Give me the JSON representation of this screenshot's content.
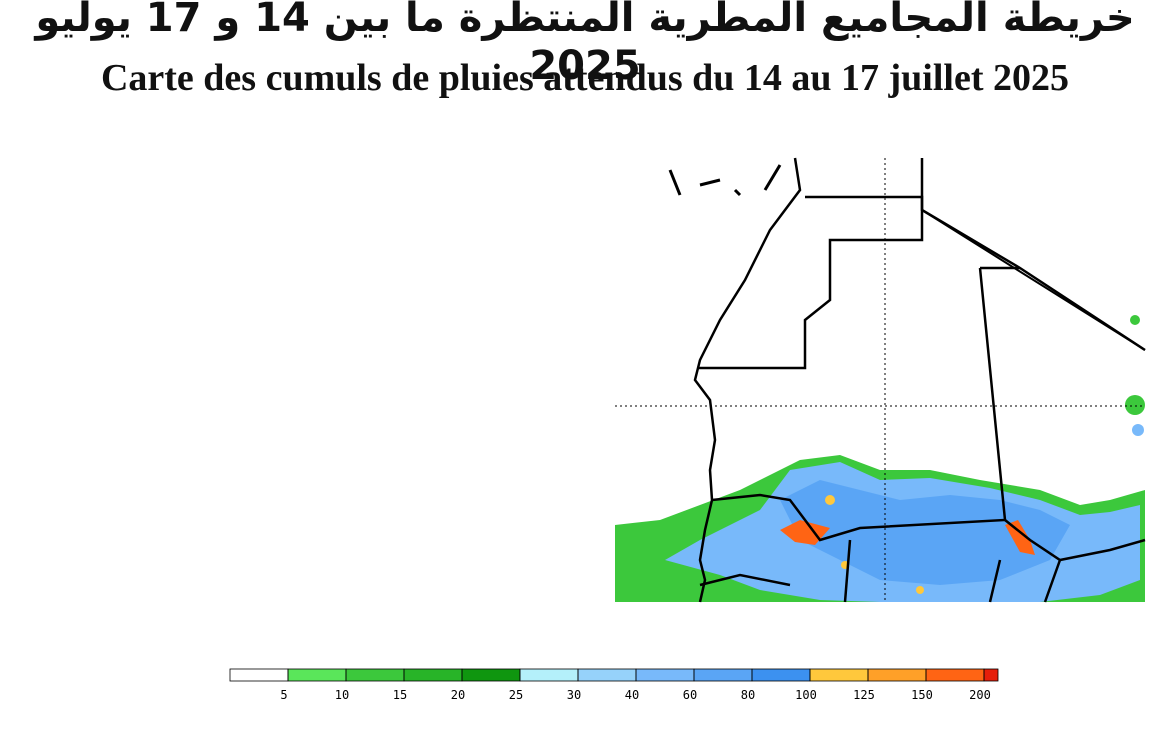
{
  "header": {
    "title_ar": "خريطة المجاميع المطرية المنتظرة ما بين 14 و 17 يوليو 2025",
    "title_fr": "Carte des cumuls de pluies attendus du 14 au 17 juillet 2025"
  },
  "legend": {
    "ticks": [
      5,
      10,
      15,
      20,
      25,
      30,
      40,
      60,
      80,
      100,
      125,
      150,
      200
    ],
    "colors": [
      "#ffffff",
      "#5ae65a",
      "#3cc83c",
      "#28b428",
      "#0f960f",
      "#b4f0fa",
      "#96d2fa",
      "#78b9fa",
      "#5aa5f5",
      "#3c91f0",
      "#ffc83c",
      "#ffa028",
      "#ff6414",
      "#e61e0a"
    ]
  }
}
